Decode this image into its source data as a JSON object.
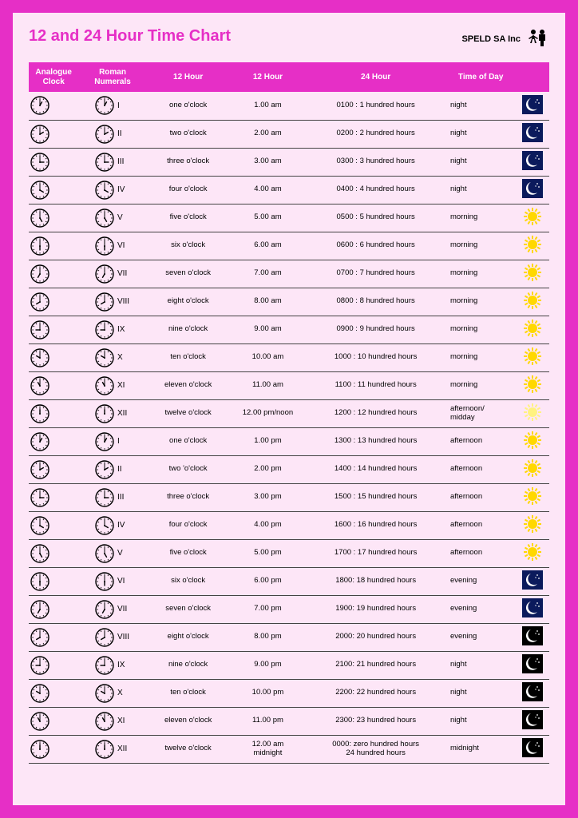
{
  "title": "12 and 24 Hour Time Chart",
  "brand": "SPELD SA Inc",
  "colors": {
    "border": "#e62fc6",
    "page_bg": "#fde6f7",
    "header_bg": "#e62fc6",
    "header_text": "#ffffff",
    "row_border": "#444444",
    "night_bg": "#0b1a5c",
    "black_bg": "#000000",
    "sun_fill": "#ffd800",
    "moon_fill": "#ffffff",
    "star_fill": "#ffffff",
    "text": "#000000"
  },
  "columns": [
    "Analogue\nClock",
    "Roman\nNumerals",
    "12 Hour",
    "12 Hour",
    "24 Hour",
    "Time of Day",
    ""
  ],
  "rows": [
    {
      "hour": 1,
      "rn": "I",
      "w": "one o'clock",
      "t": "1.00 am",
      "h24": "0100 : 1 hundred hours",
      "tod": "night",
      "icon": "night"
    },
    {
      "hour": 2,
      "rn": "II",
      "w": "two o'clock",
      "t": "2.00 am",
      "h24": "0200 : 2 hundred hours",
      "tod": "night",
      "icon": "night"
    },
    {
      "hour": 3,
      "rn": "III",
      "w": "three o'clock",
      "t": "3.00 am",
      "h24": "0300 : 3 hundred hours",
      "tod": "night",
      "icon": "night"
    },
    {
      "hour": 4,
      "rn": "IV",
      "w": "four o'clock",
      "t": "4.00 am",
      "h24": "0400 : 4 hundred hours",
      "tod": "night",
      "icon": "night"
    },
    {
      "hour": 5,
      "rn": "V",
      "w": "five o'clock",
      "t": "5.00 am",
      "h24": "0500 : 5 hundred hours",
      "tod": "morning",
      "icon": "sun"
    },
    {
      "hour": 6,
      "rn": "VI",
      "w": "six o'clock",
      "t": "6.00 am",
      "h24": "0600 : 6 hundred hours",
      "tod": "morning",
      "icon": "sun"
    },
    {
      "hour": 7,
      "rn": "VII",
      "w": "seven o'clock",
      "t": "7.00 am",
      "h24": "0700 : 7 hundred hours",
      "tod": "morning",
      "icon": "sun"
    },
    {
      "hour": 8,
      "rn": "VIII",
      "w": "eight o'clock",
      "t": "8.00 am",
      "h24": "0800 : 8 hundred hours",
      "tod": "morning",
      "icon": "sun"
    },
    {
      "hour": 9,
      "rn": "IX",
      "w": "nine o'clock",
      "t": "9.00 am",
      "h24": "0900 : 9 hundred hours",
      "tod": "morning",
      "icon": "sun"
    },
    {
      "hour": 10,
      "rn": "X",
      "w": "ten o'clock",
      "t": "10.00 am",
      "h24": "1000 : 10 hundred hours",
      "tod": "morning",
      "icon": "sun"
    },
    {
      "hour": 11,
      "rn": "XI",
      "w": "eleven o'clock",
      "t": "11.00 am",
      "h24": "1100 : 11 hundred hours",
      "tod": "morning",
      "icon": "sun"
    },
    {
      "hour": 12,
      "rn": "XII",
      "w": "twelve o'clock",
      "t": "12.00 pm/noon",
      "h24": "1200 : 12 hundred hours",
      "tod": "afternoon/\nmidday",
      "icon": "noon"
    },
    {
      "hour": 1,
      "rn": "I",
      "w": "one o'clock",
      "t": "1.00 pm",
      "h24": "1300 : 13 hundred hours",
      "tod": "afternoon",
      "icon": "sun"
    },
    {
      "hour": 2,
      "rn": "II",
      "w": "two 'o'clock",
      "t": "2.00 pm",
      "h24": "1400 : 14 hundred hours",
      "tod": "afternoon",
      "icon": "sun"
    },
    {
      "hour": 3,
      "rn": "III",
      "w": "three o'clock",
      "t": "3.00 pm",
      "h24": "1500 : 15 hundred hours",
      "tod": "afternoon",
      "icon": "sun"
    },
    {
      "hour": 4,
      "rn": "IV",
      "w": "four o'clock",
      "t": "4.00 pm",
      "h24": "1600 : 16 hundred hours",
      "tod": "afternoon",
      "icon": "sun"
    },
    {
      "hour": 5,
      "rn": "V",
      "w": "five o'clock",
      "t": "5.00 pm",
      "h24": "1700 : 17 hundred hours",
      "tod": "afternoon",
      "icon": "sun"
    },
    {
      "hour": 6,
      "rn": "VI",
      "w": "six o'clock",
      "t": "6.00 pm",
      "h24": "1800: 18 hundred hours",
      "tod": "evening",
      "icon": "night"
    },
    {
      "hour": 7,
      "rn": "VII",
      "w": "seven o'clock",
      "t": "7.00 pm",
      "h24": "1900: 19 hundred hours",
      "tod": "evening",
      "icon": "night"
    },
    {
      "hour": 8,
      "rn": "VIII",
      "w": "eight o'clock",
      "t": "8.00 pm",
      "h24": "2000: 20 hundred hours",
      "tod": "evening",
      "icon": "black"
    },
    {
      "hour": 9,
      "rn": "IX",
      "w": "nine o'clock",
      "t": "9.00 pm",
      "h24": "2100: 21 hundred hours",
      "tod": "night",
      "icon": "black"
    },
    {
      "hour": 10,
      "rn": "X",
      "w": "ten o'clock",
      "t": "10.00 pm",
      "h24": "2200: 22 hundred hours",
      "tod": "night",
      "icon": "black"
    },
    {
      "hour": 11,
      "rn": "XI",
      "w": "eleven o'clock",
      "t": "11.00 pm",
      "h24": "2300: 23 hundred hours",
      "tod": "night",
      "icon": "black"
    },
    {
      "hour": 12,
      "rn": "XII",
      "w": "twelve o'clock",
      "t": "12.00 am\nmidnight",
      "h24": "0000: zero  hundred hours\n24 hundred hours",
      "tod": "midnight",
      "icon": "black"
    }
  ]
}
